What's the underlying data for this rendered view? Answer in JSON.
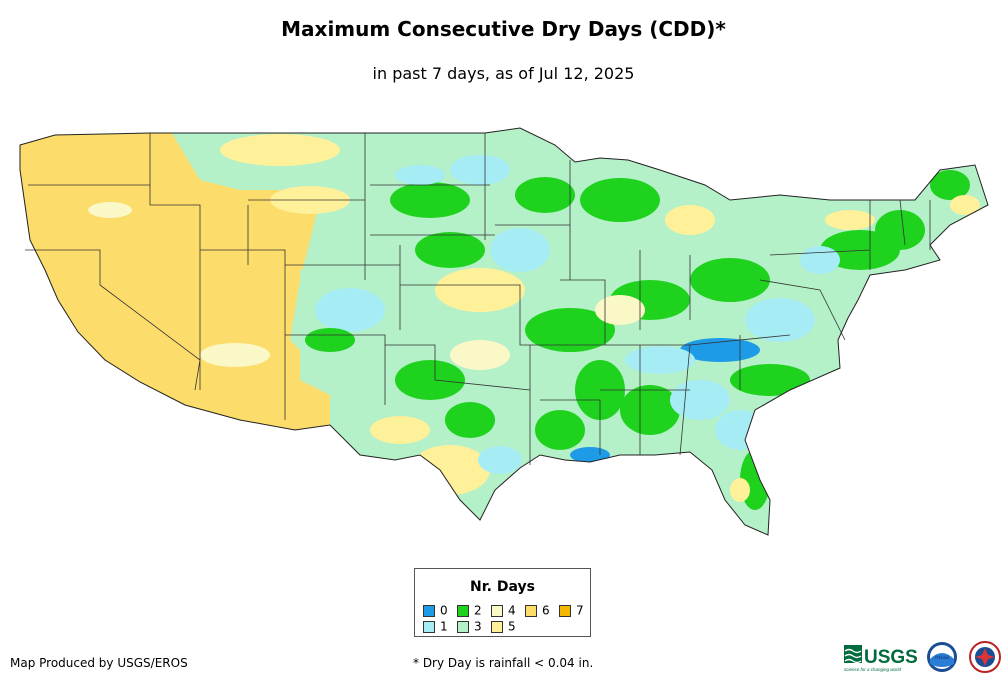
{
  "title": "Maximum Consecutive Dry Days (CDD)*",
  "subtitle": "in past 7 days, as of Jul 12, 2025",
  "legend": {
    "title": "Nr. Days",
    "items": [
      {
        "label": "0",
        "color": "#1e9be6"
      },
      {
        "label": "1",
        "color": "#a6ecf5"
      },
      {
        "label": "2",
        "color": "#1ed21e"
      },
      {
        "label": "3",
        "color": "#b4f0c8"
      },
      {
        "label": "4",
        "color": "#fbf8c8"
      },
      {
        "label": "5",
        "color": "#fff09a"
      },
      {
        "label": "6",
        "color": "#fcdc6a"
      },
      {
        "label": "7",
        "color": "#f5b800"
      }
    ]
  },
  "credit": "Map Produced by USGS/EROS",
  "footnote": "* Dry Day is rainfall < 0.04 in.",
  "logos": {
    "usgs_text": "USGS",
    "usgs_tagline": "science for a changing world",
    "noaa_text": "noaa",
    "nws_icon": "nws-seal-icon"
  }
}
